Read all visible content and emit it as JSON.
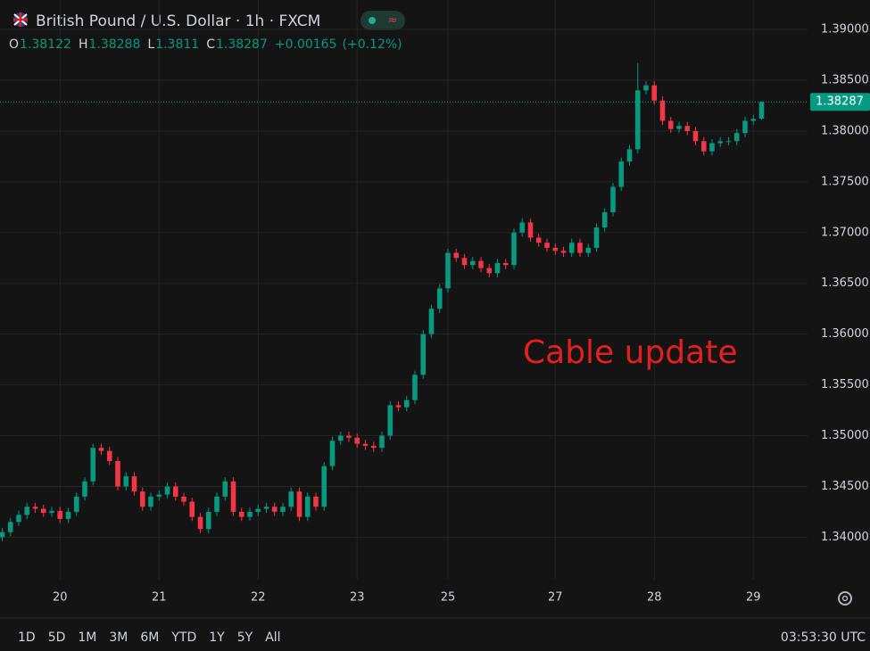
{
  "header": {
    "title": "British Pound / U.S. Dollar · 1h · FXCM",
    "ohlc_keys": [
      "O",
      "H",
      "L",
      "C"
    ]
  },
  "chart_data": {
    "type": "candlestick",
    "annotation": "Cable update",
    "up_color": "#089981",
    "down_color": "#f23645",
    "annotation_color": "#e3201e",
    "ylim": [
      1.3367,
      1.3929
    ],
    "yticks": [
      {
        "value": 1.34,
        "label": "1.34000"
      },
      {
        "value": 1.345,
        "label": "1.34500"
      },
      {
        "value": 1.35,
        "label": "1.35000"
      },
      {
        "value": 1.355,
        "label": "1.35500"
      },
      {
        "value": 1.36,
        "label": "1.36000"
      },
      {
        "value": 1.365,
        "label": "1.36500"
      },
      {
        "value": 1.37,
        "label": "1.37000"
      },
      {
        "value": 1.375,
        "label": "1.37500"
      },
      {
        "value": 1.38,
        "label": "1.38000"
      },
      {
        "value": 1.385,
        "label": "1.38500"
      },
      {
        "value": 1.39,
        "label": "1.39000"
      }
    ],
    "grid": true,
    "change": {
      "value": 0.00165,
      "label": "+0.00165"
    },
    "change_pct": {
      "value": 0.12,
      "label": "(+0.12%)"
    },
    "categories": [
      null,
      null,
      null,
      null,
      null,
      null,
      null,
      "20",
      null,
      null,
      null,
      null,
      null,
      null,
      null,
      null,
      null,
      null,
      null,
      "21",
      null,
      null,
      null,
      null,
      null,
      null,
      null,
      null,
      null,
      null,
      null,
      "22",
      null,
      null,
      null,
      null,
      null,
      null,
      null,
      null,
      null,
      null,
      null,
      "23",
      null,
      null,
      null,
      null,
      null,
      null,
      null,
      null,
      null,
      null,
      "25",
      null,
      null,
      null,
      null,
      null,
      null,
      null,
      null,
      null,
      null,
      null,
      null,
      "27",
      null,
      null,
      null,
      null,
      null,
      null,
      null,
      null,
      null,
      null,
      null,
      "28",
      null,
      null,
      null,
      null,
      null,
      null,
      null,
      null,
      null,
      null,
      null,
      "29",
      null
    ],
    "open": [
      1.34,
      1.3405,
      1.3415,
      1.3422,
      1.343,
      1.3428,
      1.3424,
      1.3426,
      1.3418,
      1.3425,
      1.344,
      1.3455,
      1.3488,
      1.3485,
      1.3475,
      1.345,
      1.346,
      1.3445,
      1.343,
      1.344,
      1.3442,
      1.345,
      1.344,
      1.3435,
      1.342,
      1.3408,
      1.3425,
      1.344,
      1.3455,
      1.3425,
      1.342,
      1.3425,
      1.3428,
      1.343,
      1.3425,
      1.343,
      1.3445,
      1.342,
      1.344,
      1.343,
      1.347,
      1.3495,
      1.35,
      1.3498,
      1.3492,
      1.349,
      1.3488,
      1.35,
      1.353,
      1.3528,
      1.3535,
      1.356,
      1.36,
      1.3625,
      1.3645,
      1.368,
      1.3675,
      1.3668,
      1.3672,
      1.3665,
      1.366,
      1.367,
      1.3668,
      1.37,
      1.371,
      1.3695,
      1.369,
      1.3685,
      1.3682,
      1.368,
      1.369,
      1.368,
      1.3685,
      1.3705,
      1.372,
      1.3745,
      1.377,
      1.3782,
      1.384,
      1.3845,
      1.383,
      1.381,
      1.3802,
      1.3805,
      1.38,
      1.379,
      1.378,
      1.3788,
      1.379,
      1.379,
      1.3798,
      1.381,
      1.38122
    ],
    "high": [
      1.3409,
      1.3419,
      1.3426,
      1.3434,
      1.3434,
      1.3432,
      1.343,
      1.343,
      1.3429,
      1.3444,
      1.3459,
      1.3492,
      1.3492,
      1.3489,
      1.3479,
      1.3464,
      1.3464,
      1.3449,
      1.3444,
      1.3446,
      1.3454,
      1.3454,
      1.3444,
      1.3439,
      1.3424,
      1.3429,
      1.3444,
      1.3459,
      1.3459,
      1.3429,
      1.3429,
      1.3432,
      1.3434,
      1.3434,
      1.3434,
      1.3449,
      1.3449,
      1.3444,
      1.3444,
      1.3474,
      1.3499,
      1.3504,
      1.3504,
      1.3502,
      1.3496,
      1.3494,
      1.3504,
      1.3534,
      1.3534,
      1.3539,
      1.3564,
      1.3604,
      1.3629,
      1.3649,
      1.3684,
      1.3684,
      1.3679,
      1.3676,
      1.3676,
      1.3669,
      1.3674,
      1.3674,
      1.3704,
      1.3714,
      1.3714,
      1.3699,
      1.3694,
      1.3689,
      1.3686,
      1.3694,
      1.3694,
      1.3689,
      1.3709,
      1.3724,
      1.3749,
      1.3774,
      1.3786,
      1.3867,
      1.3849,
      1.3849,
      1.3834,
      1.3814,
      1.3809,
      1.3809,
      1.3804,
      1.3794,
      1.3792,
      1.3794,
      1.3794,
      1.3802,
      1.3814,
      1.3816,
      1.38288
    ],
    "low": [
      1.3396,
      1.3401,
      1.3411,
      1.3418,
      1.3424,
      1.342,
      1.342,
      1.3414,
      1.3414,
      1.3421,
      1.3436,
      1.3451,
      1.3481,
      1.3471,
      1.3446,
      1.3446,
      1.3441,
      1.3426,
      1.3426,
      1.3436,
      1.3438,
      1.3436,
      1.3431,
      1.3416,
      1.3404,
      1.3404,
      1.3421,
      1.3436,
      1.3421,
      1.3416,
      1.3416,
      1.3421,
      1.3424,
      1.3421,
      1.3421,
      1.3426,
      1.3416,
      1.3416,
      1.3426,
      1.3426,
      1.3466,
      1.3491,
      1.3494,
      1.3488,
      1.3486,
      1.3484,
      1.3484,
      1.3496,
      1.3524,
      1.3524,
      1.3531,
      1.3556,
      1.3596,
      1.3621,
      1.3641,
      1.3671,
      1.3664,
      1.3664,
      1.3661,
      1.3656,
      1.3656,
      1.3664,
      1.3664,
      1.3696,
      1.3691,
      1.3686,
      1.3681,
      1.3678,
      1.3676,
      1.3676,
      1.3676,
      1.3676,
      1.3681,
      1.3701,
      1.3716,
      1.3741,
      1.3766,
      1.3778,
      1.3836,
      1.3826,
      1.3806,
      1.3798,
      1.3798,
      1.3796,
      1.3786,
      1.3776,
      1.3776,
      1.3784,
      1.3786,
      1.3786,
      1.3794,
      1.3806,
      1.3811
    ],
    "close": [
      1.3405,
      1.3415,
      1.3422,
      1.343,
      1.3428,
      1.3424,
      1.3426,
      1.3418,
      1.3425,
      1.344,
      1.3455,
      1.3488,
      1.3485,
      1.3475,
      1.345,
      1.346,
      1.3445,
      1.343,
      1.344,
      1.3442,
      1.345,
      1.344,
      1.3435,
      1.342,
      1.3408,
      1.3425,
      1.344,
      1.3455,
      1.3425,
      1.342,
      1.3425,
      1.3428,
      1.343,
      1.3425,
      1.343,
      1.3445,
      1.342,
      1.344,
      1.343,
      1.347,
      1.3495,
      1.35,
      1.3498,
      1.3492,
      1.349,
      1.3488,
      1.35,
      1.353,
      1.3528,
      1.3535,
      1.356,
      1.36,
      1.3625,
      1.3645,
      1.368,
      1.3675,
      1.3668,
      1.3672,
      1.3665,
      1.366,
      1.367,
      1.3668,
      1.37,
      1.371,
      1.3695,
      1.369,
      1.3685,
      1.3682,
      1.368,
      1.369,
      1.368,
      1.3685,
      1.3705,
      1.372,
      1.3745,
      1.377,
      1.3782,
      1.384,
      1.3845,
      1.383,
      1.381,
      1.3802,
      1.3805,
      1.38,
      1.379,
      1.378,
      1.3788,
      1.379,
      1.379,
      1.3798,
      1.381,
      1.3812,
      1.38287
    ]
  },
  "toolbar": {
    "ranges": [
      "1D",
      "5D",
      "1M",
      "3M",
      "6M",
      "YTD",
      "1Y",
      "5Y",
      "All"
    ],
    "clock": "03:53:30 UTC"
  }
}
